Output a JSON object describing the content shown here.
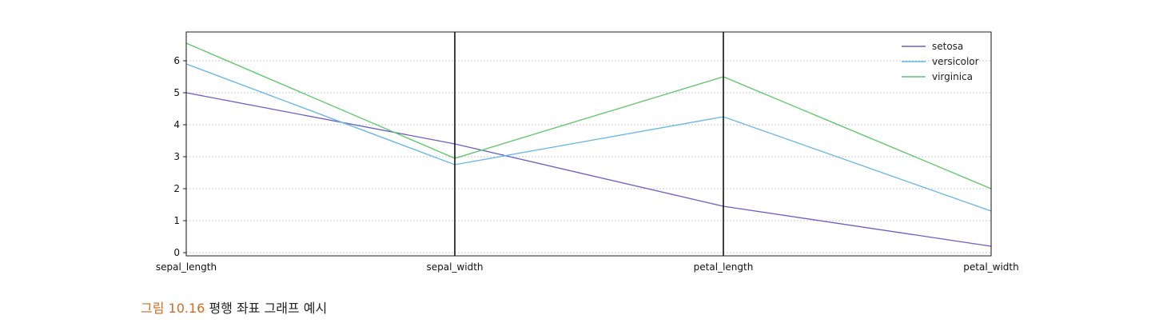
{
  "chart_data": {
    "type": "line",
    "x": [
      "sepal_length",
      "sepal_width",
      "petal_length",
      "petal_width"
    ],
    "series": [
      {
        "name": "setosa",
        "values": [
          5.0,
          3.4,
          1.45,
          0.2
        ],
        "color": "#6a5fc8"
      },
      {
        "name": "versicolor",
        "values": [
          5.9,
          2.75,
          4.25,
          1.3
        ],
        "color": "#66b6e6"
      },
      {
        "name": "virginica",
        "values": [
          6.55,
          2.95,
          5.5,
          2.0
        ],
        "color": "#5cc76a"
      }
    ],
    "ylim": [
      -0.1,
      6.9
    ],
    "yticks": [
      "0",
      "1",
      "2",
      "3",
      "4",
      "5",
      "6"
    ],
    "grid": true,
    "legend_position": "top-right"
  },
  "caption": {
    "figure_number": "그림 10.16",
    "text": "평행 좌표 그래프 예시"
  }
}
